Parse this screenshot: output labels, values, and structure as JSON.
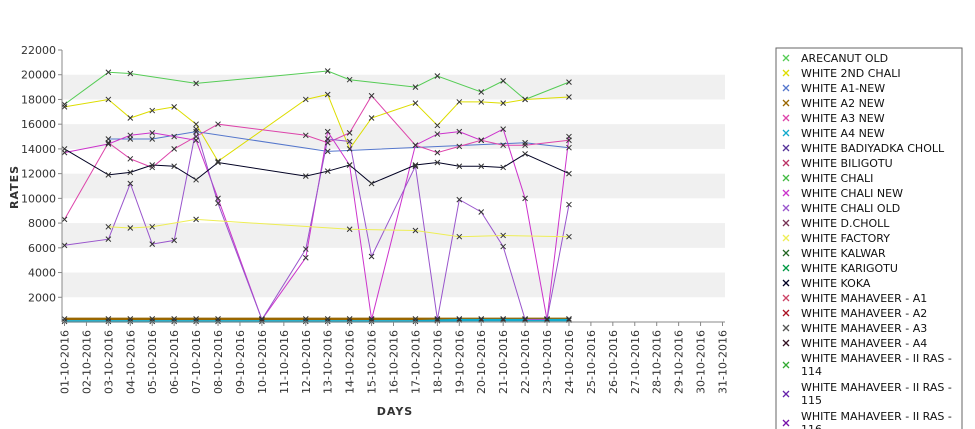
{
  "chart_data": {
    "type": "line",
    "xlabel": "DAYS",
    "ylabel": "RATES",
    "ylim": [
      0,
      22000
    ],
    "yticks": [
      2000,
      4000,
      6000,
      8000,
      10000,
      12000,
      14000,
      16000,
      18000,
      20000,
      22000
    ],
    "grid": "alternating horizontal bands",
    "legend_position": "right",
    "categories": [
      "01-10-2016",
      "02-10-2016",
      "03-10-2016",
      "04-10-2016",
      "05-10-2016",
      "06-10-2016",
      "07-10-2016",
      "08-10-2016",
      "09-10-2016",
      "10-10-2016",
      "11-10-2016",
      "12-10-2016",
      "13-10-2016",
      "14-10-2016",
      "15-10-2016",
      "16-10-2016",
      "17-10-2016",
      "18-10-2016",
      "19-10-2016",
      "20-10-2016",
      "21-10-2016",
      "22-10-2016",
      "23-10-2016",
      "24-10-2016",
      "25-10-2016",
      "26-10-2016",
      "27-10-2016",
      "28-10-2016",
      "29-10-2016",
      "30-10-2016",
      "31-10-2016"
    ],
    "series": [
      {
        "name": "ARECANUT OLD",
        "color": "#55cc55",
        "values": [
          17600,
          null,
          20200,
          20100,
          null,
          null,
          19300,
          null,
          null,
          null,
          null,
          null,
          20300,
          19600,
          null,
          null,
          19000,
          19900,
          null,
          18600,
          19500,
          18000,
          null,
          19400,
          null,
          null,
          null,
          null,
          null,
          null,
          null
        ]
      },
      {
        "name": "WHITE 2ND CHALI",
        "color": "#dddd00",
        "values": [
          17400,
          null,
          18000,
          16500,
          17100,
          17400,
          16000,
          13000,
          null,
          null,
          null,
          18000,
          18400,
          14000,
          16500,
          null,
          17700,
          15900,
          17800,
          17800,
          17700,
          18000,
          null,
          18200,
          null,
          null,
          null,
          null,
          null,
          null,
          null
        ]
      },
      {
        "name": "WHITE A1-NEW",
        "color": "#5577cc",
        "values": [
          null,
          null,
          14800,
          14800,
          14800,
          null,
          15400,
          null,
          null,
          null,
          null,
          null,
          13800,
          null,
          null,
          null,
          null,
          null,
          null,
          null,
          null,
          14500,
          null,
          14100,
          null,
          null,
          null,
          null,
          null,
          null,
          null
        ]
      },
      {
        "name": "WHITE A2 NEW",
        "color": "#996600",
        "values": [
          250,
          null,
          250,
          250,
          250,
          250,
          250,
          250,
          null,
          250,
          null,
          250,
          250,
          250,
          250,
          null,
          250,
          250,
          250,
          250,
          250,
          250,
          250,
          250,
          null,
          null,
          null,
          null,
          null,
          null,
          null
        ]
      },
      {
        "name": "WHITE A3 NEW",
        "color": "#dd44aa",
        "values": [
          8300,
          null,
          14500,
          13200,
          12500,
          14000,
          15000,
          16000,
          null,
          null,
          null,
          15100,
          14500,
          15300,
          18300,
          null,
          14300,
          13700,
          14200,
          14700,
          14300,
          14300,
          null,
          14700,
          null,
          null,
          null,
          null,
          null,
          null,
          null
        ]
      },
      {
        "name": "WHITE A4 NEW",
        "color": "#11aacc",
        "values": [
          50,
          null,
          50,
          50,
          50,
          50,
          50,
          50,
          null,
          50,
          null,
          50,
          50,
          50,
          50,
          null,
          50,
          100,
          150,
          150,
          150,
          150,
          150,
          150,
          null,
          null,
          null,
          null,
          null,
          null,
          null
        ]
      },
      {
        "name": "WHITE BADIYADKA CHOLL",
        "color": "#553399",
        "values": [
          null,
          null,
          null,
          null,
          null,
          null,
          null,
          null,
          null,
          null,
          null,
          null,
          null,
          null,
          null,
          null,
          null,
          null,
          null,
          null,
          null,
          null,
          null,
          null,
          null,
          null,
          null,
          null,
          null,
          null,
          null
        ]
      },
      {
        "name": "WHITE BILIGOTU",
        "color": "#bb3366",
        "values": [
          null,
          null,
          null,
          null,
          null,
          null,
          null,
          null,
          null,
          null,
          null,
          null,
          null,
          null,
          null,
          null,
          null,
          null,
          null,
          null,
          null,
          null,
          null,
          null,
          null,
          null,
          null,
          null,
          null,
          null,
          null
        ]
      },
      {
        "name": "WHITE CHALI",
        "color": "#44bb44",
        "values": [
          null,
          null,
          null,
          null,
          null,
          null,
          null,
          null,
          null,
          null,
          null,
          null,
          null,
          null,
          null,
          null,
          null,
          null,
          null,
          null,
          null,
          null,
          null,
          null,
          null,
          null,
          null,
          null,
          null,
          null,
          null
        ]
      },
      {
        "name": "WHITE CHALI NEW",
        "color": "#cc33cc",
        "values": [
          13700,
          null,
          14400,
          15100,
          15300,
          15000,
          14700,
          10000,
          null,
          200,
          null,
          5200,
          15400,
          12700,
          200,
          null,
          14300,
          15200,
          15400,
          14700,
          15600,
          10000,
          200,
          15000,
          null,
          null,
          null,
          null,
          null,
          null,
          null
        ]
      },
      {
        "name": "WHITE CHALI OLD",
        "color": "#9955cc",
        "values": [
          6200,
          null,
          6700,
          11200,
          6300,
          6600,
          15600,
          9600,
          null,
          200,
          null,
          5900,
          14800,
          14600,
          5300,
          null,
          12600,
          200,
          9900,
          8900,
          6100,
          200,
          200,
          9500,
          null,
          null,
          null,
          null,
          null,
          null,
          null
        ]
      },
      {
        "name": "WHITE D.CHOLL",
        "color": "#773355",
        "values": [
          null,
          null,
          null,
          null,
          null,
          null,
          null,
          null,
          null,
          null,
          null,
          null,
          null,
          null,
          null,
          null,
          null,
          null,
          null,
          null,
          null,
          null,
          null,
          null,
          null,
          null,
          null,
          null,
          null,
          null,
          null
        ]
      },
      {
        "name": "WHITE FACTORY",
        "color": "#eeee55",
        "values": [
          null,
          null,
          7700,
          7600,
          7700,
          null,
          8300,
          null,
          null,
          null,
          null,
          null,
          null,
          7500,
          null,
          null,
          7400,
          null,
          6900,
          null,
          7000,
          null,
          null,
          6900,
          null,
          null,
          null,
          null,
          null,
          null,
          null
        ]
      },
      {
        "name": "WHITE KALWAR",
        "color": "#226622",
        "values": [
          null,
          null,
          null,
          null,
          null,
          null,
          null,
          null,
          null,
          null,
          null,
          null,
          null,
          null,
          null,
          null,
          null,
          null,
          null,
          null,
          null,
          null,
          null,
          null,
          null,
          null,
          null,
          null,
          null,
          null,
          null
        ]
      },
      {
        "name": "WHITE KARIGOTU",
        "color": "#009944",
        "values": [
          null,
          null,
          null,
          null,
          null,
          null,
          null,
          null,
          null,
          null,
          null,
          null,
          null,
          null,
          null,
          null,
          null,
          null,
          null,
          null,
          null,
          null,
          null,
          null,
          null,
          null,
          null,
          null,
          null,
          null,
          null
        ]
      },
      {
        "name": "WHITE KOKA",
        "color": "#000022",
        "values": [
          14000,
          null,
          11900,
          12100,
          12700,
          12600,
          11500,
          12900,
          null,
          null,
          null,
          11800,
          12200,
          12700,
          11200,
          null,
          12700,
          12900,
          12600,
          12600,
          12500,
          13600,
          null,
          12000,
          null,
          null,
          null,
          null,
          null,
          null,
          null
        ]
      },
      {
        "name": "WHITE MAHAVEER - A1",
        "color": "#cc4466",
        "values": [
          null,
          null,
          null,
          null,
          null,
          null,
          null,
          null,
          null,
          null,
          null,
          null,
          null,
          null,
          null,
          null,
          null,
          null,
          null,
          null,
          null,
          null,
          null,
          null,
          null,
          null,
          null,
          null,
          null,
          null,
          null
        ]
      },
      {
        "name": "WHITE MAHAVEER - A2",
        "color": "#aa1122",
        "values": [
          null,
          null,
          null,
          null,
          null,
          null,
          null,
          null,
          null,
          null,
          null,
          null,
          null,
          null,
          null,
          null,
          null,
          null,
          null,
          null,
          null,
          null,
          null,
          null,
          null,
          null,
          null,
          null,
          null,
          null,
          null
        ]
      },
      {
        "name": "WHITE MAHAVEER - A3",
        "color": "#555555",
        "values": [
          null,
          null,
          null,
          null,
          null,
          null,
          null,
          null,
          null,
          null,
          null,
          null,
          null,
          null,
          null,
          null,
          null,
          null,
          null,
          null,
          null,
          null,
          null,
          null,
          null,
          null,
          null,
          null,
          null,
          null,
          null
        ]
      },
      {
        "name": "WHITE MAHAVEER - A4",
        "color": "#331122",
        "values": [
          null,
          null,
          null,
          null,
          null,
          null,
          null,
          null,
          null,
          null,
          null,
          null,
          null,
          null,
          null,
          null,
          null,
          null,
          null,
          null,
          null,
          null,
          null,
          null,
          null,
          null,
          null,
          null,
          null,
          null,
          null
        ]
      },
      {
        "name": "WHITE MAHAVEER - II RAS - 114",
        "color": "#33aa33",
        "values": [
          null,
          null,
          null,
          null,
          null,
          null,
          null,
          null,
          null,
          null,
          null,
          null,
          null,
          null,
          null,
          null,
          null,
          null,
          null,
          null,
          null,
          null,
          null,
          null,
          null,
          null,
          null,
          null,
          null,
          null,
          null
        ]
      },
      {
        "name": "WHITE MAHAVEER - II RAS - 115",
        "color": "#6622aa",
        "values": [
          null,
          null,
          null,
          null,
          null,
          null,
          null,
          null,
          null,
          null,
          null,
          null,
          null,
          null,
          null,
          null,
          null,
          null,
          null,
          null,
          null,
          null,
          null,
          null,
          null,
          null,
          null,
          null,
          null,
          null,
          null
        ]
      },
      {
        "name": "WHITE MAHAVEER - II RAS - 116",
        "color": "#7711aa",
        "values": [
          null,
          null,
          null,
          null,
          null,
          null,
          null,
          null,
          null,
          null,
          null,
          null,
          null,
          null,
          null,
          null,
          null,
          null,
          null,
          null,
          null,
          null,
          null,
          null,
          null,
          null,
          null,
          null,
          null,
          null,
          null
        ]
      }
    ]
  }
}
